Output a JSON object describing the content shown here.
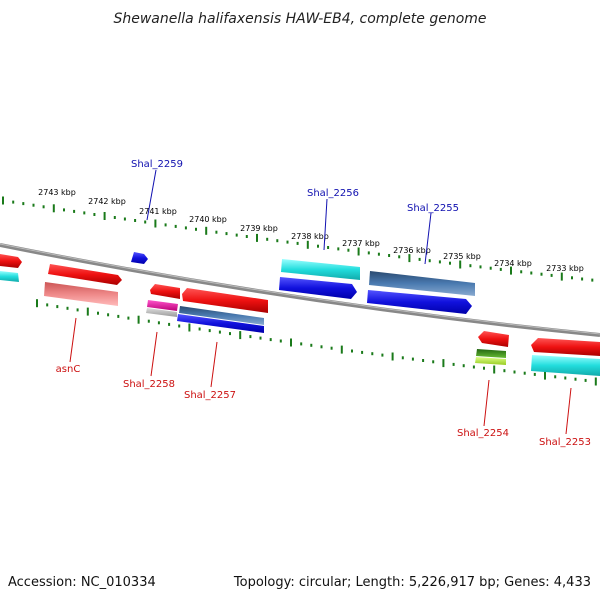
{
  "title": "Shewanella halifaxensis HAW-EB4, complete genome",
  "footer": {
    "accession": "Accession: NC_010334",
    "summary": "Topology: circular; Length: 5,226,917 bp; Genes: 4,433"
  },
  "kbp_labels": [
    "2743 kbp",
    "2742 kbp",
    "2741 kbp",
    "2740 kbp",
    "2739 kbp",
    "2738 kbp",
    "2737 kbp",
    "2736 kbp",
    "2735 kbp",
    "2734 kbp",
    "2733 kbp"
  ],
  "gene_labels": {
    "shal_2259": "Shal_2259",
    "shal_2256": "Shal_2256",
    "shal_2255": "Shal_2255",
    "asnc": "asnC",
    "shal_2258": "Shal_2258",
    "shal_2257": "Shal_2257",
    "shal_2254": "Shal_2254",
    "shal_2253": "Shal_2253"
  },
  "colors": {
    "backbone": "#888888",
    "scale_ticks": "#1a7a1a",
    "forward_label": "#1010b0",
    "reverse_label": "#cc1010",
    "red": "#ee1111",
    "pink": "#ee7777",
    "cyan": "#22dddd",
    "blue": "#1111dd",
    "steel": "#4a7ab0",
    "magenta": "#dd1199",
    "green": "#44aa22",
    "lightgreen": "#bbee44",
    "grey": "#bbbbbb"
  }
}
